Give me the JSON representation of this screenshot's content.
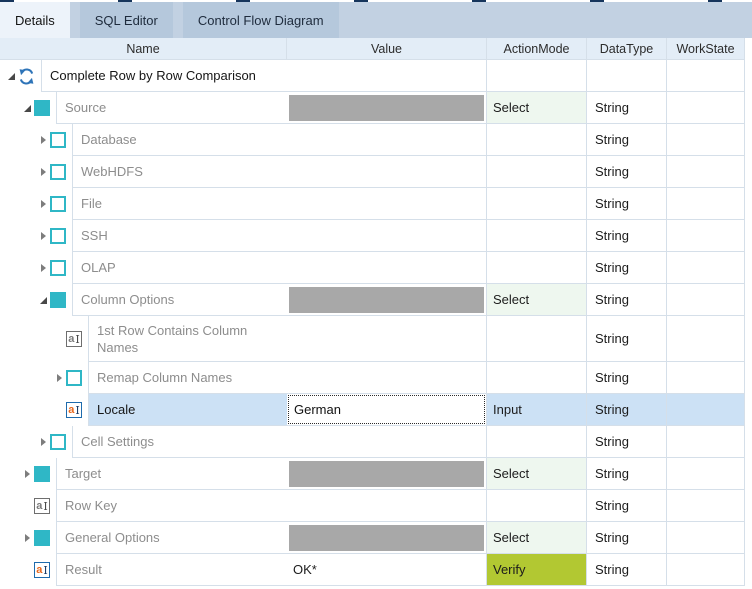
{
  "tabs": [
    {
      "label": "Details",
      "active": true
    },
    {
      "label": "SQL Editor",
      "active": false
    },
    {
      "label": "Control Flow Diagram",
      "active": false
    }
  ],
  "grid": {
    "columns": [
      "Name",
      "Value",
      "ActionMode",
      "DataType",
      "WorkState"
    ],
    "rows": [
      {
        "name": "Complete Row by Row Comparison",
        "level": 0,
        "expander": "expanded",
        "icon": "refresh",
        "icon_name": "refresh-icon",
        "value": "",
        "value_style": "empty",
        "action": "",
        "data_type": "",
        "work_state": "",
        "selected": false,
        "tall": false,
        "dark": true
      },
      {
        "name": "Source",
        "level": 1,
        "expander": "expanded",
        "icon": "square-filled",
        "icon_name": "filled-square-icon",
        "value": "",
        "value_style": "graybar",
        "action": "Select",
        "data_type": "String",
        "work_state": "",
        "selected": false,
        "tall": false,
        "dark": false
      },
      {
        "name": "Database",
        "level": 2,
        "expander": "collapsed",
        "icon": "square-empty",
        "icon_name": "empty-square-icon",
        "value": "",
        "value_style": "empty",
        "action": "",
        "data_type": "String",
        "work_state": "",
        "selected": false,
        "tall": false,
        "dark": false
      },
      {
        "name": "WebHDFS",
        "level": 2,
        "expander": "collapsed",
        "icon": "square-empty",
        "icon_name": "empty-square-icon",
        "value": "",
        "value_style": "empty",
        "action": "",
        "data_type": "String",
        "work_state": "",
        "selected": false,
        "tall": false,
        "dark": false
      },
      {
        "name": "File",
        "level": 2,
        "expander": "collapsed",
        "icon": "square-empty",
        "icon_name": "empty-square-icon",
        "value": "",
        "value_style": "empty",
        "action": "",
        "data_type": "String",
        "work_state": "",
        "selected": false,
        "tall": false,
        "dark": false
      },
      {
        "name": "SSH",
        "level": 2,
        "expander": "collapsed",
        "icon": "square-empty",
        "icon_name": "empty-square-icon",
        "value": "",
        "value_style": "empty",
        "action": "",
        "data_type": "String",
        "work_state": "",
        "selected": false,
        "tall": false,
        "dark": false
      },
      {
        "name": "OLAP",
        "level": 2,
        "expander": "collapsed",
        "icon": "square-empty",
        "icon_name": "empty-square-icon",
        "value": "",
        "value_style": "empty",
        "action": "",
        "data_type": "String",
        "work_state": "",
        "selected": false,
        "tall": false,
        "dark": false
      },
      {
        "name": "Column Options",
        "level": 2,
        "expander": "expanded",
        "icon": "square-filled",
        "icon_name": "filled-square-icon",
        "value": "",
        "value_style": "graybar",
        "action": "Select",
        "data_type": "String",
        "work_state": "",
        "selected": false,
        "tall": false,
        "dark": false
      },
      {
        "name": "1st Row Contains Column Names",
        "level": 3,
        "expander": null,
        "icon": "text-field-gray",
        "icon_name": "text-field-icon",
        "value": "",
        "value_style": "empty",
        "action": "",
        "data_type": "String",
        "work_state": "",
        "selected": false,
        "tall": true,
        "dark": false
      },
      {
        "name": "Remap Column Names",
        "level": 3,
        "expander": "collapsed",
        "icon": "square-empty",
        "icon_name": "empty-square-icon",
        "value": "",
        "value_style": "empty",
        "action": "",
        "data_type": "String",
        "work_state": "",
        "selected": false,
        "tall": false,
        "dark": false
      },
      {
        "name": "Locale",
        "level": 3,
        "expander": null,
        "icon": "text-field-orange",
        "icon_name": "text-field-edited-icon",
        "value": "German",
        "value_style": "editor",
        "action": "Input",
        "data_type": "String",
        "work_state": "",
        "selected": true,
        "tall": false,
        "dark": true
      },
      {
        "name": "Cell Settings",
        "level": 2,
        "expander": "collapsed",
        "icon": "square-empty",
        "icon_name": "empty-square-icon",
        "value": "",
        "value_style": "empty",
        "action": "",
        "data_type": "String",
        "work_state": "",
        "selected": false,
        "tall": false,
        "dark": false
      },
      {
        "name": "Target",
        "level": 1,
        "expander": "collapsed",
        "icon": "square-filled",
        "icon_name": "filled-square-icon",
        "value": "",
        "value_style": "graybar",
        "action": "Select",
        "data_type": "String",
        "work_state": "",
        "selected": false,
        "tall": false,
        "dark": false
      },
      {
        "name": "Row Key",
        "level": 1,
        "expander": null,
        "icon": "text-field-gray",
        "icon_name": "text-field-icon",
        "value": "",
        "value_style": "empty",
        "action": "",
        "data_type": "String",
        "work_state": "",
        "selected": false,
        "tall": false,
        "dark": false
      },
      {
        "name": "General Options",
        "level": 1,
        "expander": "collapsed",
        "icon": "square-filled",
        "icon_name": "filled-square-icon",
        "value": "",
        "value_style": "graybar",
        "action": "Select",
        "data_type": "String",
        "work_state": "",
        "selected": false,
        "tall": false,
        "dark": false
      },
      {
        "name": "Result",
        "level": 1,
        "expander": null,
        "icon": "text-field-orange",
        "icon_name": "text-field-edited-icon",
        "value": "OK*",
        "value_style": "text",
        "action": "Verify",
        "data_type": "String",
        "work_state": "",
        "selected": false,
        "tall": false,
        "dark": false
      }
    ]
  },
  "colors": {
    "teal": "#2fb7c6",
    "highlight": "#cce1f5",
    "select_bg": "#eef7ef",
    "verify_bg": "#b2c832",
    "graybar": "#a8a8a8",
    "border": "#d5dfe9",
    "header_bg": "#e3edf7",
    "strip_bg": "#c2d1e2",
    "tab_bg": "#b5c8dc",
    "tab_active_bg": "#edf3fa",
    "accent_blue": "#2e74b8",
    "orange": "#e8671b",
    "name_gray": "#8d8d8d"
  }
}
